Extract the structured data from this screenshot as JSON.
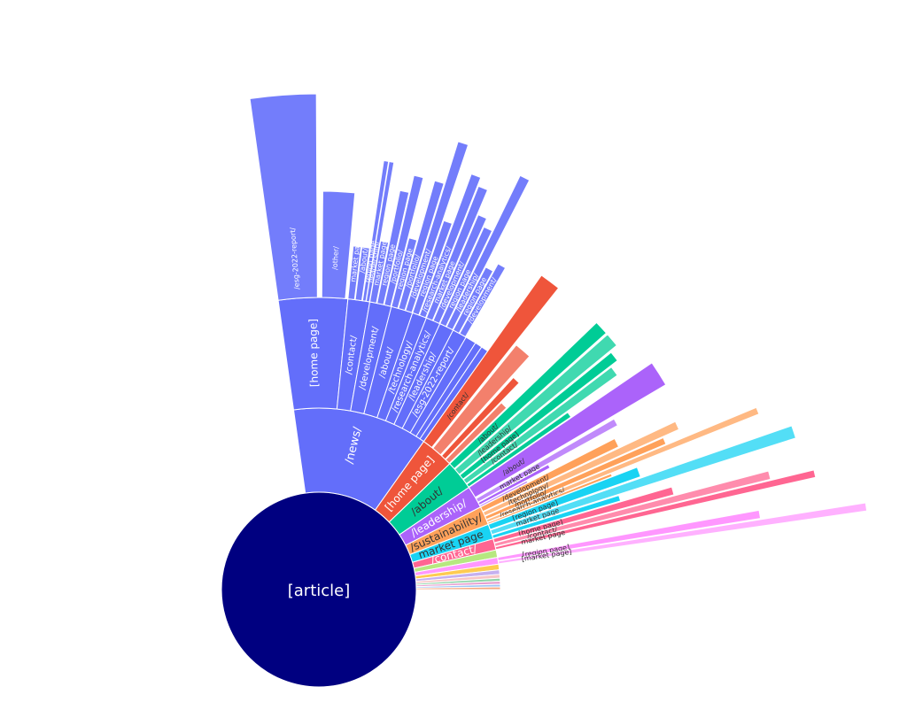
{
  "chart_data": {
    "type": "sunburst",
    "title": "",
    "root": {
      "label": "[article]",
      "color": "#000080"
    },
    "angle_start_deg": 98,
    "angle_end_deg": 0,
    "rings": [
      {
        "label": "/news/",
        "value": 36,
        "color": "#636efa",
        "children": [
          {
            "label": "[home page]",
            "value": 9.5,
            "children": [
              {
                "label": "/esg-2022-report/",
                "value": 0.5,
                "length": 230
              },
              {
                "label": "/other/",
                "value": 0.3,
                "length": 120
              }
            ]
          },
          {
            "label": "/contact/",
            "value": 3,
            "children": [
              {
                "label": "market page",
                "value": 1.0,
                "length": 60
              },
              {
                "label": "/about/",
                "value": 1.0,
                "length": 60
              },
              {
                "label": "region page",
                "value": 0.5,
                "length": 160
              },
              {
                "label": "/leadership/",
                "value": 0.5,
                "length": 160
              }
            ]
          },
          {
            "label": "/development/",
            "value": 3,
            "children": [
              {
                "label": "market page",
                "value": 1.0,
                "length": 70
              },
              {
                "label": "region page",
                "value": 1.0,
                "length": 130
              },
              {
                "label": "/portfolio/",
                "value": 1.0,
                "length": 150
              }
            ]
          },
          {
            "label": "/about/",
            "value": 3,
            "children": [
              {
                "label": "region page",
                "value": 1.0,
                "length": 80
              },
              {
                "label": "/portfolio/",
                "value": 1.0,
                "length": 150
              },
              {
                "label": "/development/",
                "value": 1.0,
                "length": 200
              }
            ]
          },
          {
            "label": "/technology/",
            "value": 2,
            "children": [
              {
                "label": "region page",
                "value": 1.0,
                "length": 110
              },
              {
                "label": "/research-analytics/",
                "value": 1.0,
                "length": 170
              }
            ]
          },
          {
            "label": "/research-analytics/",
            "value": 2,
            "children": [
              {
                "label": "market page",
                "value": 1.0,
                "length": 160
              },
              {
                "label": "/development/",
                "value": 1.0,
                "length": 130
              }
            ]
          },
          {
            "label": "/leadership/",
            "value": 2,
            "children": [
              {
                "label": "region page",
                "value": 1.0,
                "length": 120
              },
              {
                "label": "/leadership/",
                "value": 1.0,
                "length": 190
              }
            ]
          },
          {
            "label": "/esg-2022-report/",
            "value": 2,
            "children": [
              {
                "label": "region page",
                "value": 1.0,
                "length": 80
              },
              {
                "label": "/development/",
                "value": 1.0,
                "length": 90
              }
            ]
          },
          {
            "label": "",
            "value": 1.5
          },
          {
            "label": "",
            "value": 1.0
          },
          {
            "label": "",
            "value": 1.0
          }
        ]
      },
      {
        "label": "[home page]",
        "value": 9,
        "color": "#ef553b",
        "children": [
          {
            "label": "/contact/",
            "value": 3,
            "length": 230
          },
          {
            "label": "",
            "value": 3,
            "length": 150
          },
          {
            "label": "",
            "value": 1.5,
            "length": 120
          },
          {
            "label": "",
            "value": 1.5,
            "length": 90
          }
        ]
      },
      {
        "label": "/about/",
        "value": 8,
        "color": "#00cc96",
        "children": [
          {
            "label": "/about/",
            "value": 2,
            "length": 230
          },
          {
            "label": "/leadership/",
            "value": 2,
            "length": 230
          },
          {
            "label": "[home page]",
            "value": 1.5,
            "length": 220
          },
          {
            "label": "/contact/",
            "value": 1.5,
            "length": 210
          },
          {
            "label": "",
            "value": 1,
            "length": 140
          }
        ]
      },
      {
        "label": "/leadership/",
        "value": 6,
        "color": "#ab63fa",
        "children": [
          {
            "label": "/about/",
            "value": 3.5,
            "length": 250
          },
          {
            "label": "market page",
            "value": 1.2,
            "length": 180
          },
          {
            "label": "",
            "value": 0.8,
            "length": 90
          },
          {
            "label": "",
            "value": 0.5,
            "length": 60
          }
        ]
      },
      {
        "label": "/sustainability/",
        "value": 5,
        "color": "#ffa15a",
        "children": [
          {
            "label": "/development/",
            "value": 1.5,
            "length": 170
          },
          {
            "label": "/technology/",
            "value": 1.2,
            "length": 240
          },
          {
            "label": "/portfolio/",
            "value": 1.0,
            "length": 220
          },
          {
            "label": "/research-analytics/",
            "value": 0.8,
            "length": 330
          },
          {
            "label": "",
            "value": 0.5,
            "length": 150
          }
        ]
      },
      {
        "label": "market page",
        "value": 4,
        "color": "#19d3f3",
        "children": [
          {
            "label": "[region page]",
            "value": 1.6,
            "length": 180
          },
          {
            "label": "market page",
            "value": 1.4,
            "length": 360
          },
          {
            "label": "",
            "value": 1.0,
            "length": 150
          }
        ]
      },
      {
        "label": "/contact/",
        "value": 3,
        "color": "#ff6692",
        "children": [
          {
            "label": "[home page]",
            "value": 1.2,
            "length": 210
          },
          {
            "label": "/contact/",
            "value": 1.0,
            "length": 320
          },
          {
            "label": "market page",
            "value": 0.8,
            "length": 370
          }
        ]
      },
      {
        "label": "",
        "value": 2,
        "color": "#b6e880",
        "children": []
      },
      {
        "label": "",
        "value": 1.8,
        "color": "#ff97ff",
        "children": [
          {
            "label": "[region page]",
            "value": 1.0,
            "length": 300
          },
          {
            "label": "[market page]",
            "value": 0.8,
            "length": 420
          }
        ]
      },
      {
        "label": "",
        "value": 1.5,
        "color": "#fecb52",
        "children": []
      },
      {
        "label": "",
        "value": 1.2,
        "color": "#c5b0ef",
        "children": []
      },
      {
        "label": "",
        "value": 1.0,
        "color": "#f7c6c7",
        "children": []
      },
      {
        "label": "",
        "value": 0.8,
        "color": "#8fd3a8",
        "children": []
      },
      {
        "label": "",
        "value": 0.8,
        "color": "#e8a0d0",
        "children": []
      },
      {
        "label": "",
        "value": 0.7,
        "color": "#a0c4f7",
        "children": []
      },
      {
        "label": "",
        "value": 0.7,
        "color": "#f5a97f",
        "children": []
      }
    ]
  }
}
